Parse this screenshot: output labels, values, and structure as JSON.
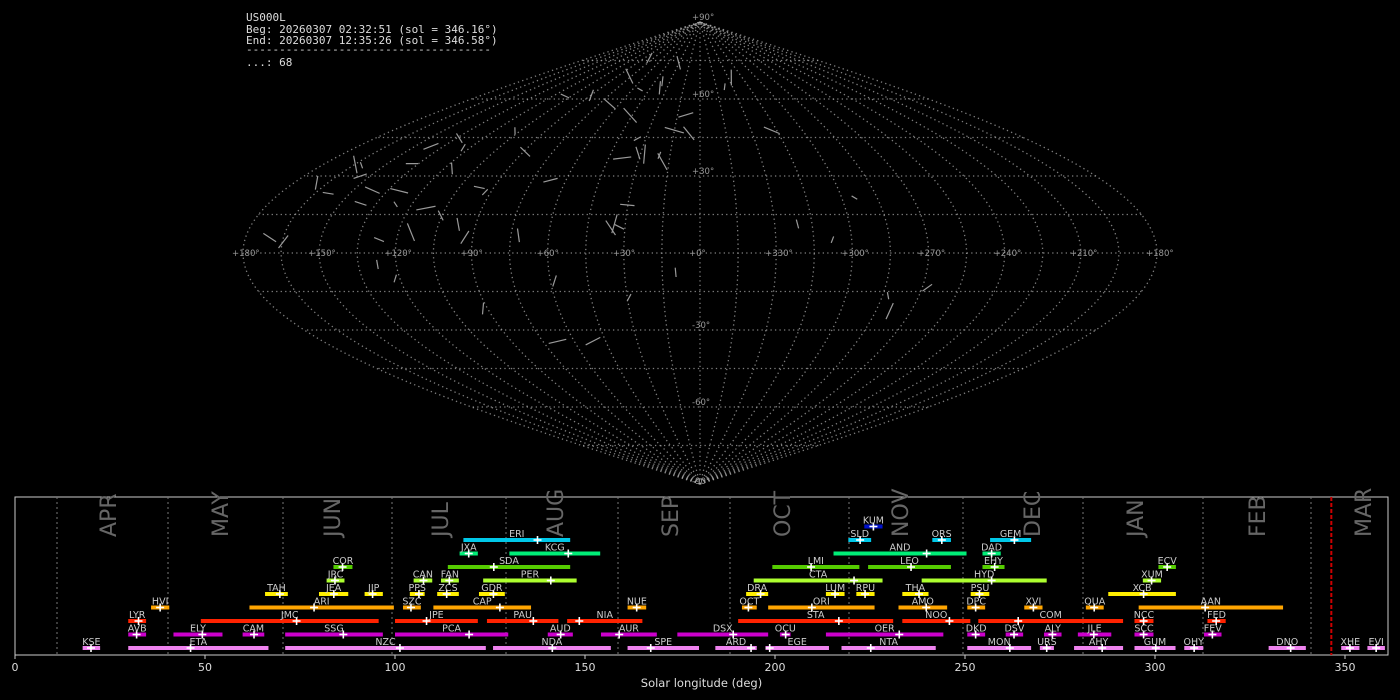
{
  "header": {
    "station": "US000L",
    "begin": "Beg: 20260307 02:32:51 (sol = 346.16°)",
    "end": "End: 20260307 12:35:26 (sol = 346.58°)",
    "separator": "-------------------------------------",
    "count_line": "...: 68"
  },
  "sky_map": {
    "projection": "sinusoidal",
    "grid_step_deg": 15,
    "grid_color": "#aaaaaa",
    "lon_labels": [
      "+180°",
      "+150°",
      "+120°",
      "+90°",
      "+60°",
      "+30°",
      "+0°",
      "+330°",
      "+300°",
      "+270°",
      "+240°",
      "+210°",
      "+180°"
    ],
    "lat_labels": [
      "+90°",
      "+60°",
      "+30°",
      "-30°",
      "-60°",
      "-90°"
    ],
    "meteor_count": 68
  },
  "chart_data": {
    "type": "range-bar",
    "xlabel": "Solar longitude (deg)",
    "xlim": [
      0,
      360
    ],
    "xticks": [
      "0",
      "50",
      "100",
      "150",
      "200",
      "250",
      "300",
      "350"
    ],
    "months": [
      "APR",
      "MAY",
      "JUN",
      "JUL",
      "AUG",
      "SEP",
      "OCT",
      "NOV",
      "DEC",
      "JAN",
      "FEB",
      "MAR"
    ],
    "current_sol": 346.4,
    "current_sol_color": "#cc0000",
    "rows": [
      {
        "color": "#ee82ee",
        "showers": [
          {
            "code": "KSE",
            "start": 17.8,
            "end": 22.4,
            "peak": 20.0
          },
          {
            "code": "ETA",
            "start": 29.8,
            "end": 66.7,
            "peak": 46.2
          },
          {
            "code": "NZC",
            "start": 71.1,
            "end": 123.9,
            "peak": 101.3
          },
          {
            "code": "NDA",
            "start": 125.8,
            "end": 156.8,
            "peak": 141.4
          },
          {
            "code": "SPE",
            "start": 161.2,
            "end": 180.0,
            "peak": 167.3
          },
          {
            "code": "ARD",
            "start": 184.3,
            "end": 195.2,
            "peak": 193.7
          },
          {
            "code": "EGE",
            "start": 197.5,
            "end": 214.2,
            "peak": 198.6
          },
          {
            "code": "NTA",
            "start": 217.5,
            "end": 242.3,
            "peak": 225.2
          },
          {
            "code": "MON",
            "start": 250.6,
            "end": 267.4,
            "peak": 261.8
          },
          {
            "code": "URS",
            "start": 269.7,
            "end": 273.4,
            "peak": 271.5
          },
          {
            "code": "AHY",
            "start": 278.7,
            "end": 291.6,
            "peak": 286.1
          },
          {
            "code": "GUM",
            "start": 294.6,
            "end": 305.4,
            "peak": 300.2
          },
          {
            "code": "OHY",
            "start": 307.7,
            "end": 312.7,
            "peak": 310.3
          },
          {
            "code": "DNO",
            "start": 329.9,
            "end": 339.7,
            "peak": 335.7
          },
          {
            "code": "XHE",
            "start": 349.0,
            "end": 353.8,
            "peak": 351.3
          },
          {
            "code": "EVI",
            "start": 355.9,
            "end": 360.5,
            "peak": 358.2
          }
        ]
      },
      {
        "color": "#cc00cc",
        "showers": [
          {
            "code": "AVB",
            "start": 29.8,
            "end": 34.5,
            "peak": 32.0
          },
          {
            "code": "ELY",
            "start": 41.7,
            "end": 54.6,
            "peak": 49.3
          },
          {
            "code": "CAM",
            "start": 59.9,
            "end": 65.6,
            "peak": 62.9
          },
          {
            "code": "SSG",
            "start": 71.1,
            "end": 96.8,
            "peak": 86.4
          },
          {
            "code": "PCA",
            "start": 100.0,
            "end": 129.8,
            "peak": 119.5
          },
          {
            "code": "AUD",
            "start": 140.2,
            "end": 146.8,
            "peak": 143.6
          },
          {
            "code": "AUR",
            "start": 154.2,
            "end": 168.9,
            "peak": 159.0
          },
          {
            "code": "DSX",
            "start": 174.3,
            "end": 198.2,
            "peak": 189.0
          },
          {
            "code": "OCU",
            "start": 201.3,
            "end": 204.1,
            "peak": 202.8
          },
          {
            "code": "OER",
            "start": 213.4,
            "end": 244.3,
            "peak": 232.7
          },
          {
            "code": "DKD",
            "start": 250.6,
            "end": 255.3,
            "peak": 252.8
          },
          {
            "code": "DSV",
            "start": 260.7,
            "end": 265.3,
            "peak": 262.9
          },
          {
            "code": "ALY",
            "start": 270.8,
            "end": 275.4,
            "peak": 273.0
          },
          {
            "code": "JLE",
            "start": 279.7,
            "end": 288.5,
            "peak": 283.9
          },
          {
            "code": "SCC",
            "start": 294.6,
            "end": 299.6,
            "peak": 297.0
          },
          {
            "code": "FEV",
            "start": 312.9,
            "end": 317.5,
            "peak": 315.1
          }
        ]
      },
      {
        "color": "#ff2200",
        "showers": [
          {
            "code": "LYR",
            "start": 29.8,
            "end": 34.5,
            "peak": 32.5
          },
          {
            "code": "JMC",
            "start": 48.9,
            "end": 95.7,
            "peak": 74.1
          },
          {
            "code": "JPE",
            "start": 100.0,
            "end": 121.8,
            "peak": 108.3
          },
          {
            "code": "PAU",
            "start": 124.2,
            "end": 143.0,
            "peak": 136.4
          },
          {
            "code": "NIA",
            "start": 145.3,
            "end": 165.1,
            "peak": 148.5
          },
          {
            "code": "STA",
            "start": 190.3,
            "end": 231.1,
            "peak": 216.8
          },
          {
            "code": "NOO",
            "start": 233.5,
            "end": 251.4,
            "peak": 245.9
          },
          {
            "code": "COM",
            "start": 253.5,
            "end": 291.6,
            "peak": 264.0
          },
          {
            "code": "NCC",
            "start": 294.6,
            "end": 299.6,
            "peak": 297.0
          },
          {
            "code": "FED",
            "start": 313.8,
            "end": 318.6,
            "peak": 316.1
          }
        ]
      },
      {
        "color": "#ffa500",
        "showers": [
          {
            "code": "HVI",
            "start": 35.8,
            "end": 40.6,
            "peak": 38.2
          },
          {
            "code": "ARI",
            "start": 61.7,
            "end": 99.7,
            "peak": 78.7
          },
          {
            "code": "SZC",
            "start": 102.1,
            "end": 106.8,
            "peak": 104.2
          },
          {
            "code": "CAP",
            "start": 110.1,
            "end": 135.8,
            "peak": 127.6
          },
          {
            "code": "NUE",
            "start": 161.2,
            "end": 166.1,
            "peak": 163.6
          },
          {
            "code": "OCT",
            "start": 191.3,
            "end": 195.2,
            "peak": 193.0
          },
          {
            "code": "ORI",
            "start": 198.2,
            "end": 226.2,
            "peak": 209.7
          },
          {
            "code": "AMO",
            "start": 232.5,
            "end": 245.3,
            "peak": 239.8
          },
          {
            "code": "DPC",
            "start": 250.6,
            "end": 255.3,
            "peak": 252.8
          },
          {
            "code": "XVI",
            "start": 265.6,
            "end": 270.4,
            "peak": 268.0
          },
          {
            "code": "QUA",
            "start": 281.8,
            "end": 286.5,
            "peak": 284.0
          },
          {
            "code": "AAN",
            "start": 295.7,
            "end": 333.7,
            "peak": 313.2
          }
        ]
      },
      {
        "color": "#ffee00",
        "showers": [
          {
            "code": "TAH",
            "start": 65.8,
            "end": 71.8,
            "peak": 69.7
          },
          {
            "code": "JEA",
            "start": 80.0,
            "end": 87.7,
            "peak": 83.9
          },
          {
            "code": "JIP",
            "start": 92.0,
            "end": 96.8,
            "peak": 94.1
          },
          {
            "code": "PPS",
            "start": 103.9,
            "end": 107.8,
            "peak": 106.3
          },
          {
            "code": "ZCS",
            "start": 111.1,
            "end": 116.8,
            "peak": 113.6
          },
          {
            "code": "GDR",
            "start": 122.1,
            "end": 128.9,
            "peak": 125.9
          },
          {
            "code": "DRA",
            "start": 192.4,
            "end": 198.2,
            "peak": 196.2
          },
          {
            "code": "LUM",
            "start": 213.4,
            "end": 218.3,
            "peak": 215.8
          },
          {
            "code": "RPU",
            "start": 221.4,
            "end": 226.2,
            "peak": 223.7
          },
          {
            "code": "THA",
            "start": 233.5,
            "end": 240.4,
            "peak": 237.9
          },
          {
            "code": "PSU",
            "start": 251.5,
            "end": 256.4,
            "peak": 253.8
          },
          {
            "code": "XCB",
            "start": 287.7,
            "end": 305.5,
            "peak": 297.0
          }
        ]
      },
      {
        "color": "#adff2f",
        "showers": [
          {
            "code": "JRC",
            "start": 82.0,
            "end": 86.7,
            "peak": 84.2
          },
          {
            "code": "CAN",
            "start": 104.9,
            "end": 109.8,
            "peak": 107.5
          },
          {
            "code": "FAN",
            "start": 112.1,
            "end": 116.8,
            "peak": 114.3
          },
          {
            "code": "PER",
            "start": 123.2,
            "end": 147.8,
            "peak": 141.0
          },
          {
            "code": "CTA",
            "start": 194.4,
            "end": 228.3,
            "peak": 220.8
          },
          {
            "code": "HYD",
            "start": 238.6,
            "end": 271.5,
            "peak": 257.0
          },
          {
            "code": "XUM",
            "start": 296.8,
            "end": 301.6,
            "peak": 299.1
          }
        ]
      },
      {
        "color": "#55cc00",
        "showers": [
          {
            "code": "COR",
            "start": 83.8,
            "end": 88.8,
            "peak": 86.2
          },
          {
            "code": "SDA",
            "start": 113.9,
            "end": 146.1,
            "peak": 126.0
          },
          {
            "code": "LMI",
            "start": 199.3,
            "end": 222.2,
            "peak": 209.5
          },
          {
            "code": "LEO",
            "start": 224.5,
            "end": 246.3,
            "peak": 235.8
          },
          {
            "code": "EHY",
            "start": 254.6,
            "end": 260.4,
            "peak": 257.8
          },
          {
            "code": "ECV",
            "start": 300.9,
            "end": 305.5,
            "peak": 303.2
          }
        ]
      },
      {
        "color": "#00ee77",
        "showers": [
          {
            "code": "JXA",
            "start": 117.0,
            "end": 121.8,
            "peak": 119.4
          },
          {
            "code": "KCG",
            "start": 130.1,
            "end": 154.0,
            "peak": 145.6
          },
          {
            "code": "AND",
            "start": 215.4,
            "end": 250.4,
            "peak": 239.9
          },
          {
            "code": "DAD",
            "start": 254.6,
            "end": 259.4,
            "peak": 257.0
          }
        ]
      },
      {
        "color": "#00c8e8",
        "showers": [
          {
            "code": "ERI",
            "start": 118.0,
            "end": 146.1,
            "peak": 137.5
          },
          {
            "code": "SLD",
            "start": 219.3,
            "end": 225.3,
            "peak": 222.4
          },
          {
            "code": "ORS",
            "start": 241.4,
            "end": 246.3,
            "peak": 243.9
          },
          {
            "code": "GEM",
            "start": 256.6,
            "end": 267.4,
            "peak": 263.0
          }
        ]
      },
      {
        "color": "#0011cc",
        "showers": [
          {
            "code": "KUM",
            "start": 223.5,
            "end": 228.3,
            "peak": 225.9
          }
        ]
      }
    ]
  }
}
